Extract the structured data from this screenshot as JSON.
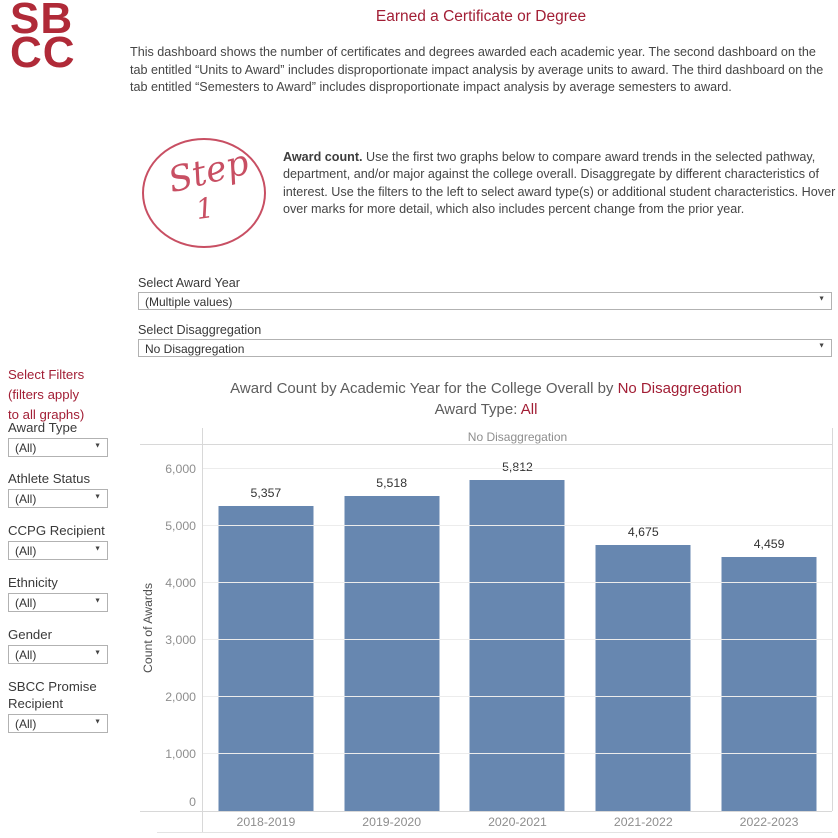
{
  "logo": {
    "line1": "SB",
    "line2": "CC"
  },
  "header": {
    "title": "Earned a Certificate or Degree",
    "description": "This dashboard shows the number of certificates and degrees awarded each academic year. The second dashboard on the tab entitled “Units to Award” includes disproportionate impact analysis by average units to award. The third dashboard on the tab entitled “Semesters to Award” includes disproportionate impact analysis by average semesters to award."
  },
  "step": {
    "word": "Step",
    "number": "1",
    "lead": "Award count.",
    "body": " Use the first two graphs below to compare award trends in the selected pathway, department, and/or major against the college overall. Disaggregate by different characteristics of interest. Use the filters to the left to select award type(s) or additional student characteristics. Hover over marks for more detail, which also includes percent change from the prior year."
  },
  "award_year": {
    "label": "Select Award Year",
    "value": "(Multiple values)"
  },
  "disaggregation": {
    "label": "Select Disaggregation",
    "value": "No Disaggregation"
  },
  "sidebar": {
    "heading_line1": "Select Filters",
    "heading_line2": "(filters apply",
    "heading_line3": "to all graphs)",
    "filters": [
      {
        "label": "Award Type",
        "value": "(All)"
      },
      {
        "label": "Athlete Status",
        "value": "(All)"
      },
      {
        "label": "CCPG Recipient",
        "value": "(All)"
      },
      {
        "label": "Ethnicity",
        "value": "(All)"
      },
      {
        "label": "Gender",
        "value": "(All)"
      },
      {
        "label": "SBCC Promise Recipient",
        "value": "(All)"
      }
    ]
  },
  "chart_data": {
    "type": "bar",
    "title_prefix": "Award Count by Academic Year for the College Overall by ",
    "title_highlight": "No Disaggregation",
    "subtitle_prefix": "Award Type: ",
    "subtitle_highlight": "All",
    "column_header": "No Disaggregation",
    "categories": [
      "2018-2019",
      "2019-2020",
      "2020-2021",
      "2021-2022",
      "2022-2023"
    ],
    "values": [
      5357,
      5518,
      5812,
      4675,
      4459
    ],
    "value_labels": [
      "5,357",
      "5,518",
      "5,812",
      "4,675",
      "4,459"
    ],
    "ylabel": "Count of Awards",
    "ylim": [
      0,
      6440
    ],
    "yticks": [
      0,
      1000,
      2000,
      3000,
      4000,
      5000,
      6000
    ],
    "ytick_labels": [
      "0",
      "1,000",
      "2,000",
      "3,000",
      "4,000",
      "5,000",
      "6,000"
    ],
    "bar_color": "#6787b0",
    "grid": true,
    "legend": "none"
  },
  "colors": {
    "brand_red": "#a21e35",
    "logo_red": "#b02a38",
    "step_pink": "#c84f63",
    "bar_blue": "#6787b0"
  }
}
